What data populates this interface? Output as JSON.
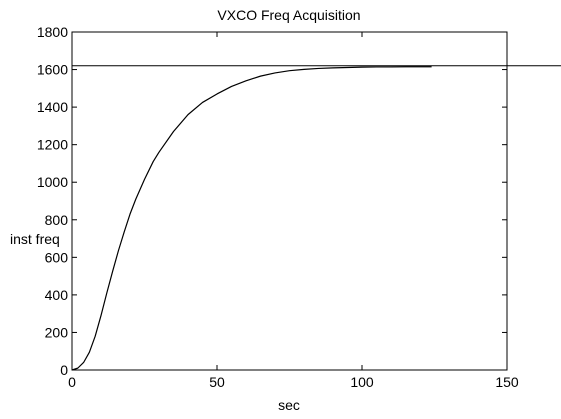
{
  "chart_data": {
    "type": "line",
    "title": "VXCO Freq Acquisition",
    "xlabel": "sec",
    "ylabel": "inst freq",
    "xlim": [
      0,
      150
    ],
    "ylim": [
      0,
      1800
    ],
    "xticks": [
      0,
      50,
      100,
      150
    ],
    "yticks": [
      0,
      200,
      400,
      600,
      800,
      1000,
      1200,
      1400,
      1600,
      1800
    ],
    "grid": false,
    "series": [
      {
        "x": [
          0,
          2,
          4,
          6,
          8,
          10,
          12,
          14,
          16,
          18,
          20,
          22,
          25,
          28,
          30,
          35,
          40,
          45,
          50,
          55,
          60,
          65,
          70,
          75,
          80,
          85,
          90,
          95,
          100,
          105,
          110,
          115,
          120,
          124
        ],
        "values": [
          0,
          10,
          40,
          95,
          180,
          290,
          410,
          525,
          635,
          735,
          830,
          910,
          1015,
          1110,
          1160,
          1270,
          1360,
          1425,
          1470,
          1510,
          1540,
          1565,
          1582,
          1594,
          1601,
          1606,
          1609,
          1611,
          1613,
          1614,
          1614,
          1615,
          1615,
          1615
        ]
      }
    ],
    "reference_lines": [
      {
        "orientation": "horizontal",
        "y": 1620
      }
    ],
    "colors": {
      "line": "#000000",
      "axes": "#000000",
      "background": "#ffffff"
    }
  }
}
